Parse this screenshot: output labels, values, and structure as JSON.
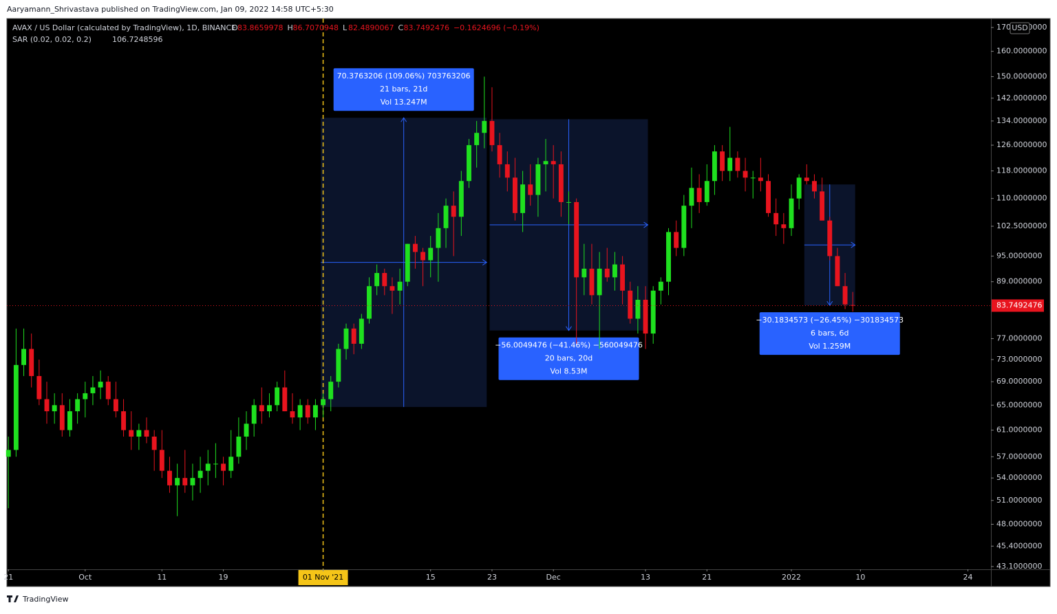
{
  "header": {
    "publisher": "Aaryamann_Shrivastava published on TradingView.com, Jan 09, 2022 14:58 UTC+5:30",
    "symbol": "AVAX / US Dollar (calculated by TradingView), 1D, BINANCE",
    "o": "O",
    "h": "H",
    "l": "L",
    "c": "C",
    "change": "−0.1624696 (−0.19%)",
    "sar": "SAR (0.02, 0.02, 0.2)",
    "sar_value": "106.7248596",
    "currency": "USD"
  },
  "footer": {
    "brand": "TradingView"
  },
  "chart_data": {
    "type": "candlestick",
    "log_scale": true,
    "up_color": "#1fe01f",
    "down_color": "#e8141e",
    "xlim": [
      -0.2,
      128
    ],
    "ylim": [
      42.8,
      173.9
    ],
    "xticks": [
      {
        "value": 0,
        "label": "21"
      },
      {
        "value": 10,
        "label": "Oct"
      },
      {
        "value": 20,
        "label": "11"
      },
      {
        "value": 28,
        "label": "19"
      },
      {
        "value": 41,
        "label": "01 Nov '21"
      },
      {
        "value": 55,
        "label": "15"
      },
      {
        "value": 63,
        "label": "23"
      },
      {
        "value": 71,
        "label": "Dec"
      },
      {
        "value": 83,
        "label": "13"
      },
      {
        "value": 91,
        "label": "21"
      },
      {
        "value": 102,
        "label": "2022"
      },
      {
        "value": 111,
        "label": "10"
      },
      {
        "value": 125,
        "label": "24"
      }
    ],
    "highlight_tick": 4,
    "yticks": [
      {
        "value": 170,
        "label": "170.0000000"
      },
      {
        "value": 160,
        "label": "160.0000000"
      },
      {
        "value": 150,
        "label": "150.0000000"
      },
      {
        "value": 142,
        "label": "142.0000000"
      },
      {
        "value": 134,
        "label": "134.0000000"
      },
      {
        "value": 126,
        "label": "126.0000000"
      },
      {
        "value": 118,
        "label": "118.0000000"
      },
      {
        "value": 110,
        "label": "110.0000000"
      },
      {
        "value": 102.5,
        "label": "102.5000000"
      },
      {
        "value": 95,
        "label": "95.0000000"
      },
      {
        "value": 89,
        "label": "89.0000000"
      },
      {
        "value": 77,
        "label": "77.0000000"
      },
      {
        "value": 73,
        "label": "73.0000000"
      },
      {
        "value": 69,
        "label": "69.0000000"
      },
      {
        "value": 65,
        "label": "65.0000000"
      },
      {
        "value": 61,
        "label": "61.0000000"
      },
      {
        "value": 57,
        "label": "57.0000000"
      },
      {
        "value": 54,
        "label": "54.0000000"
      },
      {
        "value": 51,
        "label": "51.0000000"
      },
      {
        "value": 48,
        "label": "48.0000000"
      },
      {
        "value": 45.4,
        "label": "45.4000000"
      },
      {
        "value": 43.1,
        "label": "43.1000000"
      }
    ],
    "candles": [
      [
        57,
        60,
        50,
        58
      ],
      [
        58,
        79,
        57,
        72
      ],
      [
        72,
        79,
        70,
        75
      ],
      [
        75,
        78,
        68,
        70
      ],
      [
        70,
        73,
        65,
        66
      ],
      [
        66,
        69,
        62,
        64
      ],
      [
        64,
        67,
        62,
        65
      ],
      [
        65,
        67,
        60,
        61
      ],
      [
        61,
        66,
        60,
        64
      ],
      [
        64,
        67,
        62,
        66
      ],
      [
        66,
        69,
        63,
        67
      ],
      [
        67,
        70,
        65,
        68
      ],
      [
        68,
        71,
        66,
        69
      ],
      [
        69,
        70,
        65,
        66
      ],
      [
        66,
        69,
        63,
        64
      ],
      [
        64,
        66,
        60,
        61
      ],
      [
        61,
        64,
        58,
        60
      ],
      [
        60,
        62,
        58,
        61
      ],
      [
        61,
        63,
        59,
        60
      ],
      [
        60,
        61,
        55,
        58
      ],
      [
        58,
        61,
        54,
        55
      ],
      [
        55,
        57,
        52,
        53
      ],
      [
        53,
        56,
        49,
        54
      ],
      [
        54,
        58,
        52,
        53
      ],
      [
        53,
        56,
        51,
        54
      ],
      [
        54,
        57,
        52,
        55
      ],
      [
        55,
        58,
        53,
        56
      ],
      [
        56,
        59,
        54,
        56
      ],
      [
        56,
        57,
        53,
        55
      ],
      [
        55,
        61,
        54,
        57
      ],
      [
        57,
        63,
        56,
        60
      ],
      [
        60,
        64,
        58,
        62
      ],
      [
        62,
        66,
        60,
        65
      ],
      [
        65,
        68,
        62,
        64
      ],
      [
        64,
        67,
        63,
        65
      ],
      [
        65,
        69,
        64,
        68
      ],
      [
        68,
        71,
        64,
        64
      ],
      [
        64,
        67,
        62,
        63
      ],
      [
        63,
        66,
        61,
        65
      ],
      [
        65,
        66,
        62,
        63
      ],
      [
        63,
        66,
        61,
        65
      ],
      [
        65,
        67,
        63,
        66
      ],
      [
        66,
        70,
        64,
        69
      ],
      [
        69,
        76,
        68,
        75
      ],
      [
        75,
        80,
        73,
        79
      ],
      [
        79,
        80,
        74,
        76
      ],
      [
        76,
        82,
        75,
        81
      ],
      [
        81,
        90,
        80,
        88
      ],
      [
        88,
        93,
        86,
        91
      ],
      [
        91,
        92,
        86,
        88
      ],
      [
        88,
        90,
        82,
        87
      ],
      [
        87,
        92,
        84,
        89
      ],
      [
        89,
        98,
        88,
        98
      ],
      [
        98,
        100,
        92,
        96
      ],
      [
        96,
        97,
        88,
        94
      ],
      [
        94,
        100,
        90,
        97
      ],
      [
        97,
        106,
        89,
        102
      ],
      [
        102,
        110,
        97,
        108
      ],
      [
        108,
        112,
        95,
        105
      ],
      [
        105,
        118,
        100,
        115
      ],
      [
        115,
        128,
        113,
        126
      ],
      [
        126,
        134,
        119,
        130
      ],
      [
        130,
        150,
        125,
        134
      ],
      [
        134,
        146,
        124,
        126
      ],
      [
        126,
        130,
        116,
        120
      ],
      [
        120,
        124,
        112,
        116
      ],
      [
        116,
        122,
        104,
        106
      ],
      [
        106,
        118,
        101,
        114
      ],
      [
        114,
        120,
        108,
        111
      ],
      [
        111,
        122,
        105,
        120
      ],
      [
        120,
        128,
        112,
        121
      ],
      [
        121,
        126,
        110,
        120
      ],
      [
        120,
        124,
        105,
        109
      ],
      [
        109,
        112,
        103,
        109
      ],
      [
        109,
        110,
        76,
        90
      ],
      [
        90,
        98,
        86,
        92
      ],
      [
        92,
        98,
        84,
        86
      ],
      [
        86,
        96,
        75,
        92
      ],
      [
        92,
        97,
        89,
        90
      ],
      [
        90,
        96,
        87,
        93
      ],
      [
        93,
        95,
        84,
        87
      ],
      [
        87,
        89,
        80,
        81
      ],
      [
        81,
        88,
        78,
        85
      ],
      [
        85,
        88,
        75,
        78
      ],
      [
        78,
        88,
        76,
        87
      ],
      [
        87,
        90,
        84,
        89
      ],
      [
        89,
        102,
        86,
        101
      ],
      [
        101,
        104,
        95,
        97
      ],
      [
        97,
        111,
        95,
        108
      ],
      [
        108,
        119,
        102,
        113
      ],
      [
        113,
        117,
        106,
        109
      ],
      [
        109,
        120,
        108,
        115
      ],
      [
        115,
        126,
        111,
        124
      ],
      [
        124,
        126,
        115,
        118
      ],
      [
        118,
        132,
        115,
        122
      ],
      [
        122,
        124,
        116,
        118
      ],
      [
        118,
        122,
        112,
        116
      ],
      [
        116,
        118,
        110,
        116
      ],
      [
        116,
        122,
        112,
        115
      ],
      [
        115,
        117,
        105,
        106
      ],
      [
        106,
        110,
        100,
        103
      ],
      [
        103,
        106,
        98,
        102
      ],
      [
        102,
        114,
        100,
        110
      ],
      [
        110,
        117,
        107,
        116
      ],
      [
        116,
        120,
        114,
        115
      ],
      [
        115,
        117,
        110,
        112
      ],
      [
        112,
        116,
        104,
        104
      ],
      [
        104,
        105,
        94,
        95
      ],
      [
        95,
        97,
        88,
        88
      ],
      [
        88,
        91,
        83,
        84
      ],
      [
        83.8659978,
        86.7070948,
        82.4890067,
        83.7492476
      ]
    ],
    "measures": [
      {
        "x": [
          41,
          62
        ],
        "y": [
          64.7,
          135.1
        ],
        "label_above": true,
        "lines": [
          "70.3763206 (109.06%) 703763206",
          "21 bars, 21d",
          "Vol 13.247M"
        ]
      },
      {
        "x": [
          63,
          83
        ],
        "y": [
          134.6,
          78.6
        ],
        "label_above": false,
        "lines": [
          "−56.0049476 (−41.46%) −560049476",
          "20 bars, 20d",
          "Vol 8.53M"
        ]
      },
      {
        "x": [
          104,
          110
        ],
        "y": [
          114,
          83.8
        ],
        "label_above": false,
        "lines": [
          "−30.1834573 (−26.45%) −301834573",
          "6 bars, 6d",
          "Vol 1.259M"
        ]
      }
    ]
  }
}
